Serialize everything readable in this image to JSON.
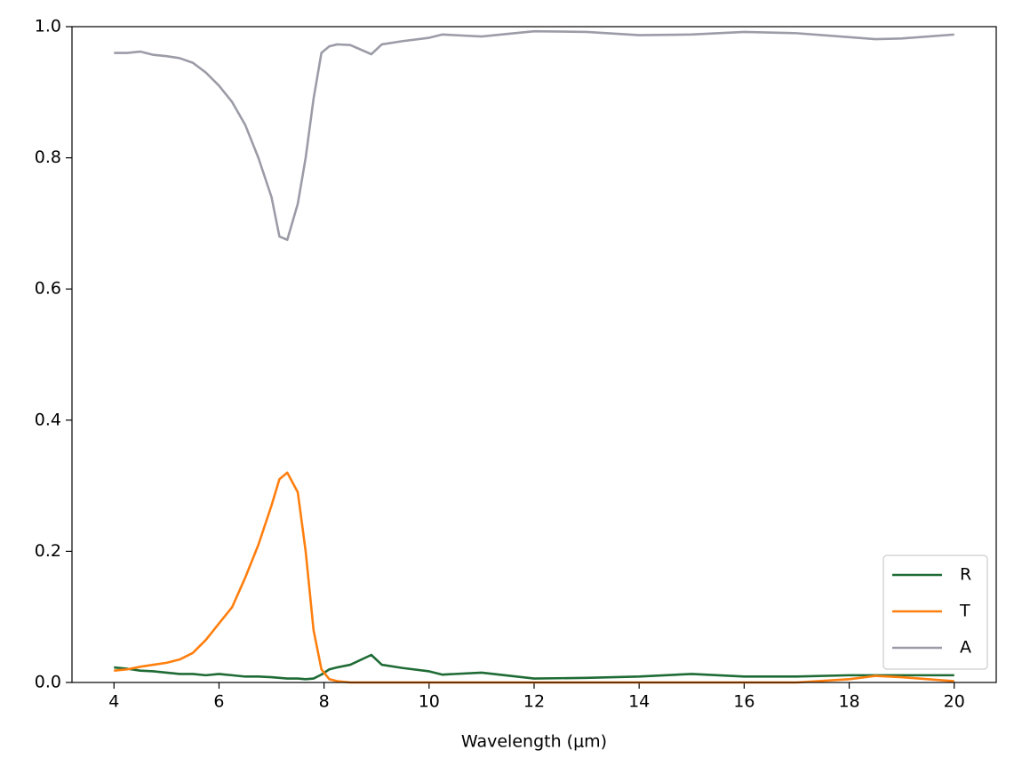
{
  "chart_data": {
    "type": "line",
    "x_label": "Wavelength (μm)",
    "x": [
      4,
      4.25,
      4.5,
      4.75,
      5,
      5.25,
      5.5,
      5.75,
      6,
      6.25,
      6.5,
      6.75,
      7,
      7.15,
      7.3,
      7.5,
      7.65,
      7.8,
      7.95,
      8.1,
      8.25,
      8.5,
      8.9,
      9.1,
      9.5,
      10,
      10.25,
      11,
      12,
      13,
      14,
      15,
      16,
      17,
      18,
      18.5,
      19,
      20
    ],
    "series": [
      {
        "name": "R",
        "color": "#1f6b35",
        "values": [
          0.023,
          0.021,
          0.018,
          0.017,
          0.015,
          0.013,
          0.013,
          0.011,
          0.013,
          0.011,
          0.009,
          0.009,
          0.008,
          0.007,
          0.006,
          0.006,
          0.005,
          0.006,
          0.012,
          0.02,
          0.023,
          0.027,
          0.042,
          0.027,
          0.022,
          0.017,
          0.012,
          0.015,
          0.006,
          0.007,
          0.009,
          0.013,
          0.009,
          0.009,
          0.011,
          0.011,
          0.011,
          0.011
        ]
      },
      {
        "name": "T",
        "color": "#ff7f0e",
        "values": [
          0.018,
          0.02,
          0.024,
          0.027,
          0.03,
          0.035,
          0.045,
          0.065,
          0.09,
          0.115,
          0.16,
          0.21,
          0.27,
          0.31,
          0.32,
          0.29,
          0.2,
          0.08,
          0.02,
          0.005,
          0.002,
          0,
          0,
          0,
          0,
          0,
          0,
          0,
          0,
          0,
          0,
          0,
          0,
          0,
          0.005,
          0.01,
          0.008,
          0.002
        ]
      },
      {
        "name": "A",
        "color": "#9c9ca8",
        "values": [
          0.96,
          0.96,
          0.962,
          0.957,
          0.955,
          0.952,
          0.945,
          0.93,
          0.91,
          0.885,
          0.85,
          0.8,
          0.74,
          0.68,
          0.675,
          0.73,
          0.8,
          0.89,
          0.96,
          0.97,
          0.973,
          0.972,
          0.958,
          0.973,
          0.978,
          0.983,
          0.988,
          0.985,
          0.993,
          0.992,
          0.987,
          0.988,
          0.992,
          0.99,
          0.984,
          0.981,
          0.982,
          0.988
        ]
      }
    ],
    "xlim": [
      3.2,
      20.8
    ],
    "ylim": [
      0,
      1
    ],
    "xticks": [
      4,
      6,
      8,
      10,
      12,
      14,
      16,
      18,
      20
    ],
    "yticks": [
      {
        "value": 0,
        "label": "0.0"
      },
      0.2,
      0.4,
      0.6,
      0.8,
      {
        "value": 1,
        "label": "1.0"
      }
    ],
    "legend": "lower right"
  }
}
